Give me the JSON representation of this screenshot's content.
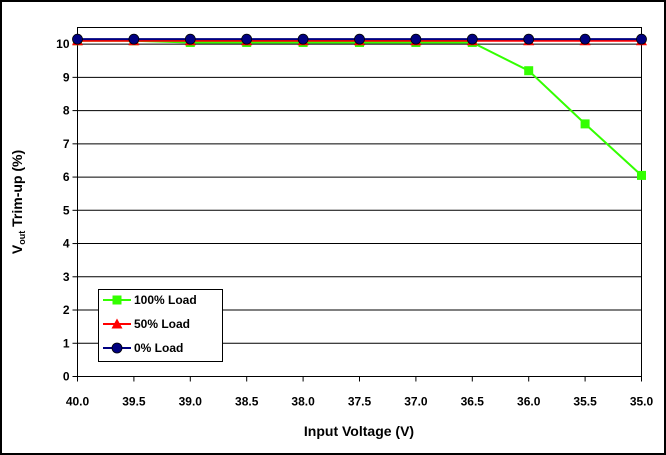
{
  "chart_data": {
    "type": "line",
    "xlabel": "Input Voltage (V)",
    "ylabel_main": "V",
    "ylabel_sub": "out",
    "ylabel_rest": " Trim-up (%)",
    "x": [
      "40.0",
      "39.5",
      "39.0",
      "38.5",
      "38.0",
      "37.5",
      "37.0",
      "36.5",
      "36.0",
      "35.5",
      "35.0"
    ],
    "yticks": [
      "0",
      "1",
      "2",
      "3",
      "4",
      "5",
      "6",
      "7",
      "8",
      "9",
      "10"
    ],
    "ylim": [
      0,
      10.5
    ],
    "series": [
      {
        "name": "100% Load",
        "color": "#33ff00",
        "marker": "square",
        "values": [
          10.1,
          10.1,
          10.05,
          10.05,
          10.05,
          10.05,
          10.05,
          10.05,
          9.2,
          7.6,
          6.05
        ]
      },
      {
        "name": "50% Load",
        "color": "#ff0000",
        "marker": "triangle",
        "values": [
          10.1,
          10.1,
          10.1,
          10.1,
          10.1,
          10.1,
          10.1,
          10.1,
          10.1,
          10.1,
          10.1
        ]
      },
      {
        "name": "0% Load",
        "color": "#000080",
        "marker": "circle",
        "values": [
          10.15,
          10.15,
          10.15,
          10.15,
          10.15,
          10.15,
          10.15,
          10.15,
          10.15,
          10.15,
          10.15
        ]
      }
    ],
    "grid": "horizontal",
    "legend_position": "bottom-left"
  }
}
